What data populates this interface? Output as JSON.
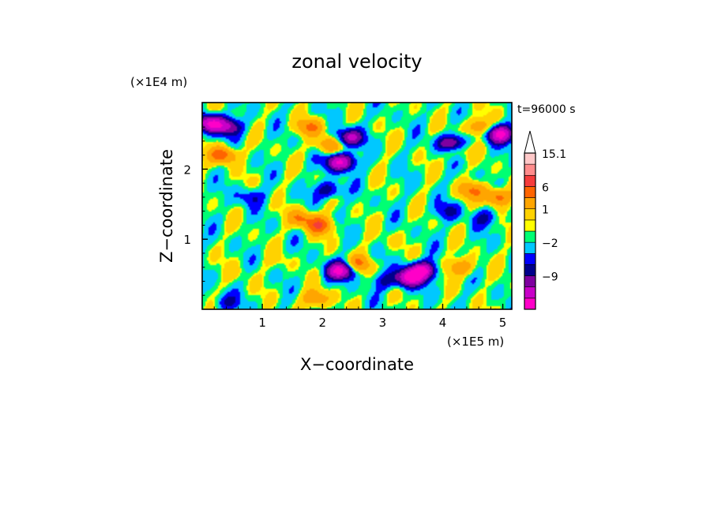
{
  "chart_data": {
    "type": "heatmap",
    "title": "zonal velocity",
    "xlabel": "X−coordinate",
    "ylabel": "Z−coordinate",
    "x_scale_label": "(×1E5 m)",
    "y_scale_label": "(×1E4 m)",
    "time_label": "t=96000 s",
    "xlim": [
      0.0,
      5.15
    ],
    "ylim": [
      0.0,
      2.95
    ],
    "x_ticks": [
      "1",
      "2",
      "3",
      "4",
      "5"
    ],
    "y_ticks": [
      "1",
      "2"
    ],
    "colorbar": {
      "levels": [
        {
          "color": "#ff00c8",
          "label": ""
        },
        {
          "color": "#c800c8",
          "label": ""
        },
        {
          "color": "#7f00a0",
          "label": "−9"
        },
        {
          "color": "#00008c",
          "label": ""
        },
        {
          "color": "#0000ff",
          "label": ""
        },
        {
          "color": "#00c8ff",
          "label": "−2"
        },
        {
          "color": "#00ff73",
          "label": ""
        },
        {
          "color": "#ffff00",
          "label": ""
        },
        {
          "color": "#ffd200",
          "label": "1"
        },
        {
          "color": "#ffa500",
          "label": ""
        },
        {
          "color": "#ff6400",
          "label": "6"
        },
        {
          "color": "#f53c3c",
          "label": ""
        },
        {
          "color": "#ff8c8c",
          "label": ""
        },
        {
          "color": "#ffc8c8",
          "label": "15.1"
        }
      ],
      "overflow_color": "#ffffff"
    },
    "features": [
      {
        "x": 0.15,
        "z": 2.65,
        "value": -14
      },
      {
        "x": 0.45,
        "z": 2.6,
        "value": -8
      },
      {
        "x": 0.35,
        "z": 2.2,
        "value": 8
      },
      {
        "x": 0.8,
        "z": 1.6,
        "value": -4
      },
      {
        "x": 1.8,
        "z": 2.6,
        "value": 6
      },
      {
        "x": 2.1,
        "z": 2.35,
        "value": 6
      },
      {
        "x": 2.3,
        "z": 2.1,
        "value": -14
      },
      {
        "x": 2.45,
        "z": 2.45,
        "value": -10
      },
      {
        "x": 2.1,
        "z": 1.7,
        "value": -6
      },
      {
        "x": 1.65,
        "z": 1.3,
        "value": 6
      },
      {
        "x": 1.95,
        "z": 1.2,
        "value": 8
      },
      {
        "x": 2.3,
        "z": 0.55,
        "value": -14
      },
      {
        "x": 2.6,
        "z": 0.65,
        "value": 6
      },
      {
        "x": 1.9,
        "z": 0.15,
        "value": 6
      },
      {
        "x": 3.45,
        "z": 0.45,
        "value": -14
      },
      {
        "x": 3.65,
        "z": 0.55,
        "value": -14
      },
      {
        "x": 3.05,
        "z": 0.4,
        "value": -4
      },
      {
        "x": 3.1,
        "z": 1.0,
        "value": 1
      },
      {
        "x": 4.3,
        "z": 0.6,
        "value": 6
      },
      {
        "x": 4.2,
        "z": 2.3,
        "value": 8
      },
      {
        "x": 4.5,
        "z": 1.7,
        "value": 6
      },
      {
        "x": 4.15,
        "z": 2.35,
        "value": -14
      },
      {
        "x": 4.95,
        "z": 2.5,
        "value": -14
      },
      {
        "x": 4.9,
        "z": 1.6,
        "value": 8
      },
      {
        "x": 4.7,
        "z": 1.3,
        "value": -4
      },
      {
        "x": 4.1,
        "z": 1.4,
        "value": -4
      },
      {
        "x": 4.6,
        "z": 2.6,
        "value": 6
      },
      {
        "x": 0.6,
        "z": 0.5,
        "value": 1
      },
      {
        "x": 1.3,
        "z": 0.7,
        "value": 1
      },
      {
        "x": 0.4,
        "z": 0.1,
        "value": -4
      }
    ]
  }
}
